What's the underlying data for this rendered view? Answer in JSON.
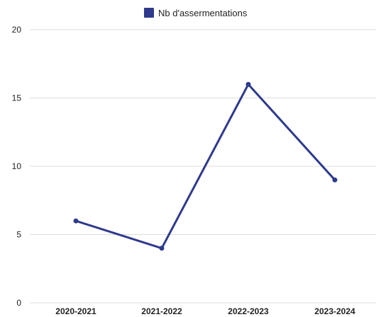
{
  "chart_data": {
    "type": "line",
    "categories": [
      "2020-2021",
      "2021-2022",
      "2022-2023",
      "2023-2024"
    ],
    "series": [
      {
        "name": "Nb d'assermentations",
        "values": [
          6,
          4,
          16,
          9
        ],
        "color": "#2e3a8c"
      }
    ],
    "y_ticks": [
      "0",
      "5",
      "10",
      "15",
      "20"
    ],
    "ylim": [
      0,
      20
    ],
    "grid": true,
    "legend_position": "top-center"
  }
}
